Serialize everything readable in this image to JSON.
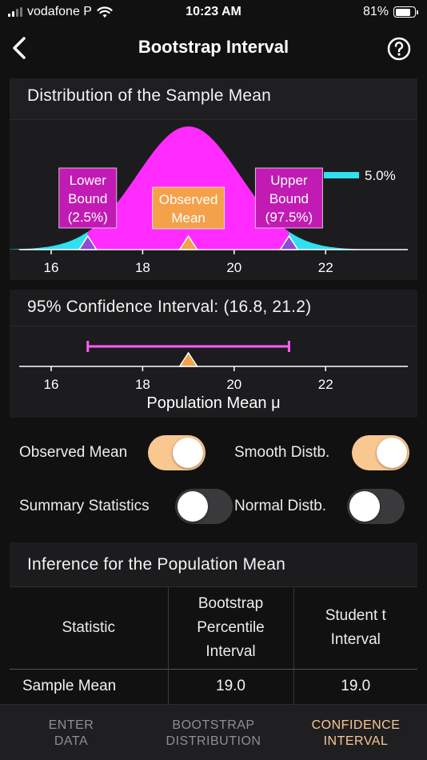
{
  "status_bar": {
    "carrier": "vodafone P",
    "time": "10:23 AM",
    "battery": "81%",
    "battery_level": 0.81,
    "signal_bars": 2
  },
  "nav": {
    "title": "Bootstrap Interval",
    "back_icon": "chevron-left-icon",
    "help_icon": "question-circle-icon"
  },
  "distribution_card": {
    "title": "Distribution of the Sample Mean",
    "legend_label": "5.0%",
    "lower_bound_label": [
      "Lower",
      "Bound",
      "(2.5%)"
    ],
    "observed_label": [
      "Observed",
      "Mean"
    ],
    "upper_bound_label": [
      "Upper",
      "Bound",
      "(97.5%)"
    ]
  },
  "ci_card": {
    "title": "95% Confidence Interval: (16.8, 21.2)",
    "xlabel": "Population Mean μ"
  },
  "toggles": {
    "observed_mean": {
      "label": "Observed Mean",
      "on": true
    },
    "smooth_distb": {
      "label": "Smooth Distb.",
      "on": true
    },
    "summary_statistics": {
      "label": "Summary Statistics",
      "on": false
    },
    "normal_distb": {
      "label": "Normal Distb.",
      "on": false
    }
  },
  "inference_card": {
    "title": "Inference for the Population Mean",
    "headers": [
      "Statistic",
      "Bootstrap Percentile Interval",
      "Student t Interval"
    ],
    "rows": [
      {
        "statistic": "Sample Mean",
        "bootstrap": "19.0",
        "student": "19.0"
      }
    ]
  },
  "tabs": [
    {
      "label": "ENTER DATA",
      "active": false
    },
    {
      "label": "BOOTSTRAP DISTRIBUTION",
      "active": false
    },
    {
      "label": "CONFIDENCE INTERVAL",
      "active": true
    }
  ],
  "colors": {
    "accent": "#f9c790",
    "magenta": "#ff2bff",
    "cyan": "#2fe0f0",
    "orange": "#f5a04a",
    "bound_box": "#c11bb4",
    "observed_box": "#f4a14a",
    "interval_line": "#ff5cf5"
  },
  "chart_data": [
    {
      "type": "area",
      "title": "Distribution of the Sample Mean",
      "xlim": [
        15.0,
        23.5
      ],
      "x_ticks": [
        16,
        18,
        20,
        22
      ],
      "mean": 19.0,
      "sd": 1.12,
      "lower_bound": 16.8,
      "upper_bound": 21.2,
      "observed_mean": 19.0,
      "series": [
        {
          "name": "5.0%",
          "region": "tails"
        }
      ]
    },
    {
      "type": "interval",
      "title": "95% Confidence Interval: (16.8, 21.2)",
      "xlabel": "Population Mean μ",
      "xlim": [
        15.0,
        23.5
      ],
      "x_ticks": [
        16,
        18,
        20,
        22
      ],
      "interval": [
        16.8,
        21.2
      ],
      "point": 19.0
    }
  ]
}
